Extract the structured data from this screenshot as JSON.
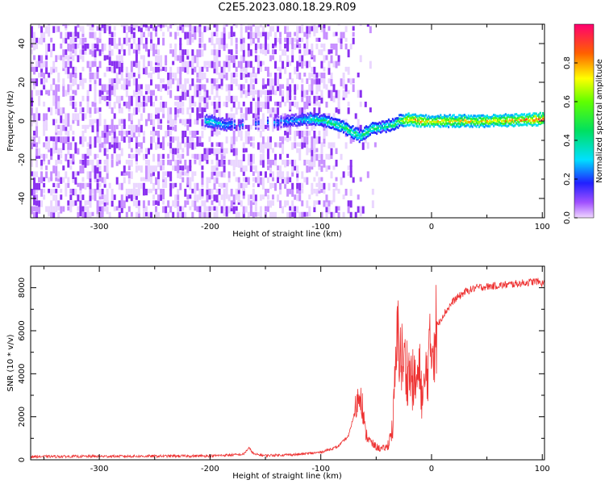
{
  "page": {
    "title": "C2E5.2023.080.18.29.R09"
  },
  "colors": {
    "background": "#ffffff",
    "snr_line": "#ee3333",
    "frame": "#000000"
  },
  "chart_data": [
    {
      "type": "heatmap",
      "title": "C2E5.2023.080.18.29.R09",
      "xlabel": "Height of straight line (km)",
      "ylabel": "Frequency (Hz)",
      "xlim": [
        -362,
        102
      ],
      "ylim": [
        -50,
        50
      ],
      "x_ticks": [
        -300,
        -200,
        -100,
        0,
        100
      ],
      "x_tick_labels": [
        "-300",
        "-200",
        "-100",
        "0",
        "100"
      ],
      "y_ticks": [
        -40,
        -20,
        0,
        20,
        40
      ],
      "y_tick_labels": [
        "-40",
        "-20",
        "0",
        "20",
        "40"
      ],
      "ridge": {
        "x": [
          -200,
          -185,
          -130,
          -110,
          -95,
          -80,
          -65,
          -55,
          -45,
          -35,
          -30,
          -20,
          -10,
          0,
          25,
          50,
          75,
          100
        ],
        "y": [
          0,
          -2,
          0,
          1,
          0,
          -3,
          -8,
          -4,
          -3,
          -2,
          0,
          1,
          0,
          0,
          0,
          0,
          0.5,
          1
        ],
        "amp": [
          0.35,
          0.3,
          0.25,
          0.4,
          0.45,
          0.5,
          0.45,
          0.5,
          0.4,
          0.5,
          0.55,
          0.85,
          0.8,
          0.75,
          0.75,
          0.75,
          0.8,
          0.95
        ]
      },
      "colorbar": {
        "label": "Normalized spectral amplitude",
        "range": [
          0,
          1
        ],
        "ticks": [
          0.0,
          0.2,
          0.4,
          0.6,
          0.8
        ],
        "tick_labels": [
          "0.0",
          "0.2",
          "0.4",
          "0.6",
          "0.8"
        ]
      }
    },
    {
      "type": "line",
      "xlabel": "Height of straight line (km)",
      "ylabel": "SNR (10 * v/v)",
      "xlim": [
        -362,
        102
      ],
      "ylim": [
        0,
        9000
      ],
      "x_ticks": [
        -300,
        -200,
        -100,
        0,
        100
      ],
      "x_tick_labels": [
        "-300",
        "-200",
        "-100",
        "0",
        "100"
      ],
      "y_ticks": [
        0,
        2000,
        4000,
        6000,
        8000
      ],
      "y_tick_labels": [
        "0",
        "2000",
        "4000",
        "6000",
        "8000"
      ],
      "series": [
        {
          "x": [
            -362,
            -300,
            -250,
            -200,
            -170,
            -165,
            -160,
            -150,
            -120,
            -100,
            -85,
            -75,
            -68,
            -64,
            -60,
            -55,
            -50,
            -45,
            -40,
            -35,
            -32,
            -30,
            -28,
            -25,
            -20,
            -15,
            -10,
            -8,
            -5,
            0,
            5,
            10,
            20,
            30,
            40,
            60,
            80,
            95,
            100
          ],
          "y": [
            150,
            160,
            170,
            180,
            250,
            550,
            250,
            200,
            250,
            350,
            600,
            1100,
            2500,
            3300,
            1300,
            800,
            600,
            500,
            600,
            1500,
            4600,
            6000,
            4800,
            4500,
            4000,
            3500,
            4000,
            2500,
            4000,
            5300,
            6200,
            6700,
            7400,
            7800,
            8000,
            8100,
            8200,
            8300,
            8200
          ]
        }
      ]
    }
  ]
}
